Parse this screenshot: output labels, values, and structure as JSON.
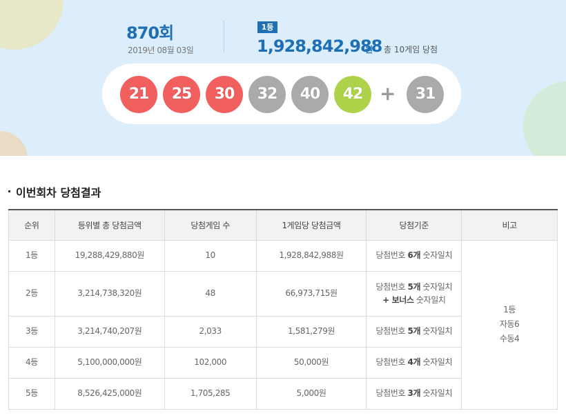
{
  "draw": {
    "number": "870",
    "suffix": "회",
    "date": "2019년 08월 03일"
  },
  "first_prize": {
    "badge": "1등",
    "amount": "1,928,842,988",
    "unit": "원",
    "winners_text": "총 10게임 당첨"
  },
  "winning_numbers": [
    {
      "value": "21",
      "color": "#f25f5f"
    },
    {
      "value": "25",
      "color": "#f25f5f"
    },
    {
      "value": "30",
      "color": "#f25f5f"
    },
    {
      "value": "32",
      "color": "#aaaaaa"
    },
    {
      "value": "40",
      "color": "#aaaaaa"
    },
    {
      "value": "42",
      "color": "#aed34a"
    }
  ],
  "plus_symbol": "+",
  "bonus_number": {
    "value": "31",
    "color": "#aaaaaa"
  },
  "results_section": {
    "title": "이번회차 당첨결과",
    "headers": [
      "순위",
      "등위별 총 당첨금액",
      "당첨게임 수",
      "1게임당 당첨금액",
      "당첨기준",
      "비고"
    ],
    "rows": [
      {
        "rank": "1등",
        "total": "19,288,429,880원",
        "games": "10",
        "per_game": "1,928,842,988원",
        "criteria_pre": "당첨번호 ",
        "criteria_hl": "6개",
        "criteria_post": " 숫자일치",
        "criteria_line2_hl": "",
        "criteria_line2_post": ""
      },
      {
        "rank": "2등",
        "total": "3,214,738,320원",
        "games": "48",
        "per_game": "66,973,715원",
        "criteria_pre": "당첨번호 ",
        "criteria_hl": "5개",
        "criteria_post": " 숫자일치",
        "criteria_line2_hl": "+ 보너스",
        "criteria_line2_post": " 숫자일치"
      },
      {
        "rank": "3등",
        "total": "3,214,740,207원",
        "games": "2,033",
        "per_game": "1,581,279원",
        "criteria_pre": "당첨번호 ",
        "criteria_hl": "5개",
        "criteria_post": " 숫자일치",
        "criteria_line2_hl": "",
        "criteria_line2_post": ""
      },
      {
        "rank": "4등",
        "total": "5,100,000,000원",
        "games": "102,000",
        "per_game": "50,000원",
        "criteria_pre": "당첨번호 ",
        "criteria_hl": "4개",
        "criteria_post": " 숫자일치",
        "criteria_line2_hl": "",
        "criteria_line2_post": ""
      },
      {
        "rank": "5등",
        "total": "8,526,425,000원",
        "games": "1,705,285",
        "per_game": "5,000원",
        "criteria_pre": "당첨번호 ",
        "criteria_hl": "3개",
        "criteria_post": " 숫자일치",
        "criteria_line2_hl": "",
        "criteria_line2_post": ""
      }
    ],
    "note_lines": [
      "1등",
      "자동6",
      "수동4"
    ]
  },
  "colors": {
    "brand_blue": "#1f6fb5",
    "hero_bg": "#dceefb"
  }
}
